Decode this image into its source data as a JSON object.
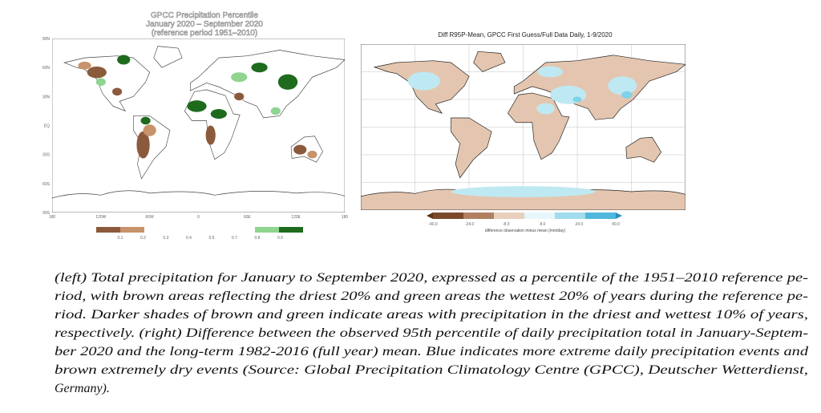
{
  "left_map": {
    "title_lines": [
      "GPCC Precipitation Percentile",
      "January 2020 – September 2020",
      "(reference period 1951–2010)"
    ],
    "lat_labels": [
      "90N",
      "60N",
      "30N",
      "EQ",
      "30S",
      "60S",
      "90S"
    ],
    "lon_labels": [
      "180",
      "120W",
      "60W",
      "0",
      "60E",
      "120E",
      "180"
    ],
    "colorbar_labels": [
      "0.1",
      "0.2",
      "0.3",
      "0.4",
      "0.6",
      "0.7",
      "0.8",
      "0.9"
    ]
  },
  "right_map": {
    "title": "Diff R95P-Mean, GPCC First Guess/Full Data Daily, 1-9/2020",
    "colorbar_labels": [
      "-40.0",
      "-24.0",
      "-8.0",
      "8.0",
      "24.0",
      "40.0"
    ],
    "colorbar_title": "difference observation minus mean (mm/day)"
  },
  "caption_lines": [
    "(left) Total precipitation for January to September 2020, expressed as a percentile of the 1951–2010 reference pe-",
    "riod, with brown areas reflecting the driest 20% and green areas the wettest 20% of years during the reference pe-",
    "riod. Darker  shades of brown and green indicate areas with precipitation in the  driest and wettest 10% of years,",
    "respectively. (right) Difference between the observed 95th percentile of daily precipitation total in January-Septem-",
    "ber 2020 and the long-term 1982-2016 (full year) mean. Blue indicates more extreme daily precipitation events and",
    "brown extremely dry events (Source: Global Precipitation Climatology Centre (GPCC), Deutscher Wetterdienst,",
    "Germany)."
  ]
}
